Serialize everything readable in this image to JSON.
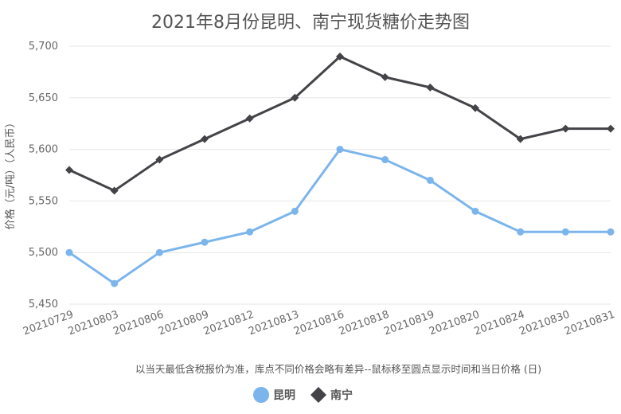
{
  "chart_data": {
    "type": "line",
    "title": "2021年8月份昆明、南宁现货糖价走势图",
    "ylabel": "价格（元/吨）（人民币）",
    "note": "以当天最低含税报价为准，库点不同价格会略有差异--鼠标移至圆点显示时间和当日价格 (日)",
    "ylim": [
      5450,
      5700
    ],
    "yticks": [
      5450,
      5500,
      5550,
      5600,
      5650,
      5700
    ],
    "ytick_labels": [
      "5,450",
      "5,500",
      "5,550",
      "5,600",
      "5,650",
      "5,700"
    ],
    "grid": true,
    "legend_position": "bottom",
    "categories": [
      "20210729",
      "20210803",
      "20210806",
      "20210809",
      "20210812",
      "20210813",
      "20210816",
      "20210818",
      "20210819",
      "20210820",
      "20210824",
      "20210830",
      "20210831"
    ],
    "series": [
      {
        "name": "昆明",
        "color": "#7cb5ec",
        "marker": "circle",
        "values": [
          5500,
          5470,
          5500,
          5510,
          5520,
          5540,
          5600,
          5590,
          5570,
          5540,
          5520,
          5520,
          5520
        ]
      },
      {
        "name": "南宁",
        "color": "#434348",
        "marker": "diamond",
        "values": [
          5580,
          5560,
          5590,
          5610,
          5630,
          5650,
          5690,
          5670,
          5660,
          5640,
          5610,
          5620,
          5620
        ]
      }
    ]
  }
}
